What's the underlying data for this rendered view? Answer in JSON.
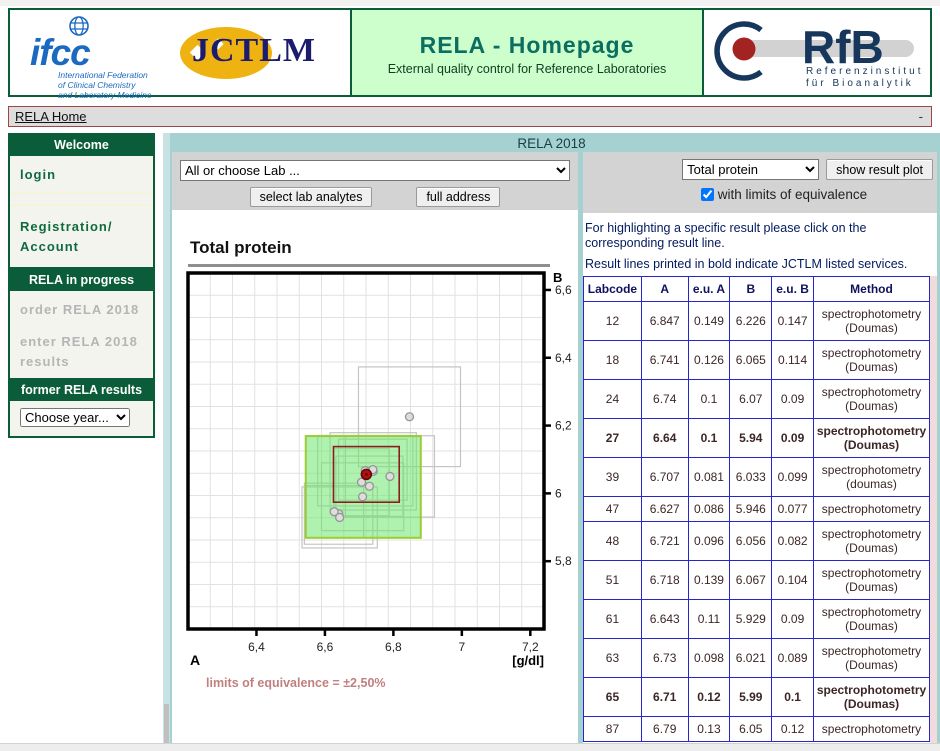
{
  "header": {
    "ifcc": {
      "word": "ifcc",
      "lines": [
        "International Federation",
        "of Clinical Chemistry",
        "and Laboratory Medicine"
      ]
    },
    "jctlm": "JCTLM",
    "title": "RELA - Homepage",
    "subtitle": "External quality control for Reference Laboratories",
    "rfb": {
      "word": "RfB",
      "sub1": "Referenzinstitut",
      "sub2": "für Bioanalytik"
    }
  },
  "nav": {
    "home": "RELA Home",
    "right": "-"
  },
  "sidebar": {
    "welcome": {
      "title": "Welcome",
      "login": "login",
      "registration": "Registration/ Account"
    },
    "progress": {
      "title": "RELA in progress",
      "order": "order RELA 2018",
      "enter": "enter RELA 2018 results"
    },
    "former": {
      "title": "former RELA results",
      "select": "Choose year..."
    }
  },
  "main": {
    "title": "RELA 2018",
    "lab_toolbar": {
      "select": "All or choose Lab ...",
      "btn_analytes": "select lab analytes",
      "btn_address": "full address"
    },
    "result_toolbar": {
      "select": "Total protein",
      "btn_show": "show result plot",
      "checkbox_label": "with limits of equivalence",
      "checked": true
    },
    "notes": [
      "For highlighting a specific result please click on the corresponding result line.",
      "Result lines printed in bold indicate JCTLM listed services."
    ],
    "limits_caption": "limits of equivalence = ±2,50%"
  },
  "table": {
    "headers": [
      "Labcode",
      "A",
      "e.u. A",
      "B",
      "e.u. B",
      "Method"
    ]
  },
  "chart_data": {
    "type": "scatter",
    "title": "Total protein",
    "xlabel": "A",
    "ylabel": "B",
    "unit_label": "[g/dl]",
    "xlim": [
      6.2,
      7.24
    ],
    "ylim": [
      5.6,
      6.65
    ],
    "x_ticks": [
      {
        "v": 6.4,
        "label": "6,4"
      },
      {
        "v": 6.6,
        "label": "6,6"
      },
      {
        "v": 6.8,
        "label": "6,8"
      },
      {
        "v": 7.0,
        "label": "7"
      },
      {
        "v": 7.2,
        "label": "7,2"
      }
    ],
    "y_ticks": [
      {
        "v": 6.6,
        "label": "6,6"
      },
      {
        "v": 6.4,
        "label": "6,4"
      },
      {
        "v": 6.2,
        "label": "6,2"
      },
      {
        "v": 6.0,
        "label": "6"
      },
      {
        "v": 5.8,
        "label": "5,8"
      }
    ],
    "grid_divisions": 16,
    "limits_box": {
      "xmin": 6.544,
      "xmax": 6.88,
      "ymin": 5.869,
      "ymax": 6.169,
      "percent": "±2,50%"
    },
    "highlighted_labcode": "48",
    "labs": [
      {
        "code": "12",
        "A": 6.847,
        "euA": 0.149,
        "B": 6.226,
        "euB": 0.147,
        "method": "spectrophotometry (Doumas)",
        "bold": false
      },
      {
        "code": "18",
        "A": 6.741,
        "euA": 0.126,
        "B": 6.065,
        "euB": 0.114,
        "method": "spectrophotometry (Doumas)",
        "bold": false
      },
      {
        "code": "24",
        "A": 6.74,
        "euA": 0.1,
        "B": 6.07,
        "euB": 0.09,
        "method": "spectrophotometry (Doumas)",
        "bold": false
      },
      {
        "code": "27",
        "A": 6.64,
        "euA": 0.1,
        "B": 5.94,
        "euB": 0.09,
        "method": "spectrophotometry (Doumas)",
        "bold": true
      },
      {
        "code": "39",
        "A": 6.707,
        "euA": 0.081,
        "B": 6.033,
        "euB": 0.099,
        "method": "spectrophotometry (doumas)",
        "bold": false
      },
      {
        "code": "47",
        "A": 6.627,
        "euA": 0.086,
        "B": 5.946,
        "euB": 0.077,
        "method": "spectrophotometry",
        "bold": false
      },
      {
        "code": "48",
        "A": 6.721,
        "euA": 0.096,
        "B": 6.056,
        "euB": 0.082,
        "method": "spectrophotometry (Doumas)",
        "bold": false
      },
      {
        "code": "51",
        "A": 6.718,
        "euA": 0.139,
        "B": 6.067,
        "euB": 0.104,
        "method": "spectrophotometry (Doumas)",
        "bold": false
      },
      {
        "code": "61",
        "A": 6.643,
        "euA": 0.11,
        "B": 5.929,
        "euB": 0.09,
        "method": "spectrophotometry (Doumas)",
        "bold": false
      },
      {
        "code": "63",
        "A": 6.73,
        "euA": 0.098,
        "B": 6.021,
        "euB": 0.089,
        "method": "spectrophotometry (Doumas)",
        "bold": false
      },
      {
        "code": "65",
        "A": 6.71,
        "euA": 0.12,
        "B": 5.99,
        "euB": 0.1,
        "method": "spectrophotometry (Doumas)",
        "bold": true
      },
      {
        "code": "87",
        "A": 6.79,
        "euA": 0.13,
        "B": 6.05,
        "euB": 0.12,
        "method": "spectrophotometry",
        "bold": false
      }
    ]
  }
}
